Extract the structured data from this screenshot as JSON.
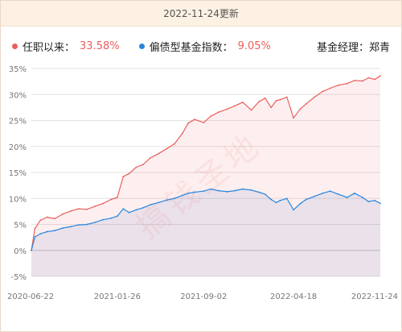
{
  "header": {
    "updated": "2022-11-24更新"
  },
  "legend": {
    "series1": {
      "label": "任职以来：",
      "value": "33.58%",
      "color": "#e8605e"
    },
    "series2": {
      "label": "偏债型基金指数：",
      "value": "9.05%",
      "color": "#2a86de"
    },
    "manager": "基金经理：郑青"
  },
  "watermark": "搞钱圣地",
  "chart_data": {
    "type": "area",
    "title": "",
    "xlabel": "",
    "ylabel": "",
    "ylim": [
      -5,
      35
    ],
    "y_ticks": [
      35,
      30,
      25,
      20,
      15,
      10,
      5,
      0,
      -5
    ],
    "y_tick_labels": [
      "35%",
      "30%",
      "25%",
      "20%",
      "15%",
      "10%",
      "5%",
      "0%",
      "-5%"
    ],
    "x_tick_labels": [
      "2020-06-22",
      "2021-01-26",
      "2021-09-02",
      "2022-04-18",
      "2022-11-24"
    ],
    "x": [
      "2020-06-22",
      "2020-07-01",
      "2020-07-15",
      "2020-08-01",
      "2020-08-20",
      "2020-09-10",
      "2020-10-01",
      "2020-10-20",
      "2020-11-10",
      "2020-12-01",
      "2020-12-20",
      "2021-01-10",
      "2021-01-26",
      "2021-02-10",
      "2021-02-25",
      "2021-03-15",
      "2021-04-01",
      "2021-04-20",
      "2021-05-10",
      "2021-06-01",
      "2021-06-20",
      "2021-07-10",
      "2021-07-25",
      "2021-08-10",
      "2021-09-02",
      "2021-09-20",
      "2021-10-10",
      "2021-11-01",
      "2021-11-20",
      "2021-12-10",
      "2022-01-01",
      "2022-01-20",
      "2022-02-05",
      "2022-02-20",
      "2022-03-05",
      "2022-03-15",
      "2022-04-01",
      "2022-04-18",
      "2022-05-05",
      "2022-05-20",
      "2022-06-10",
      "2022-07-01",
      "2022-07-20",
      "2022-08-10",
      "2022-09-01",
      "2022-09-20",
      "2022-10-10",
      "2022-10-25",
      "2022-11-10",
      "2022-11-24"
    ],
    "series": [
      {
        "name": "任职以来",
        "color": "#e8605e",
        "values": [
          0,
          4.2,
          5.8,
          6.4,
          6.1,
          7.0,
          7.6,
          8.0,
          7.9,
          8.5,
          9.0,
          9.8,
          10.2,
          14.2,
          14.8,
          16.0,
          16.5,
          17.8,
          18.6,
          19.6,
          20.5,
          22.5,
          24.5,
          25.2,
          24.6,
          25.8,
          26.6,
          27.2,
          27.8,
          28.5,
          27.0,
          28.6,
          29.3,
          27.5,
          28.8,
          29.0,
          29.5,
          25.5,
          27.2,
          28.2,
          29.5,
          30.6,
          31.2,
          31.8,
          32.1,
          32.7,
          32.6,
          33.2,
          32.9,
          33.58
        ]
      },
      {
        "name": "偏债型基金指数",
        "color": "#2a86de",
        "values": [
          0,
          2.6,
          3.2,
          3.6,
          3.8,
          4.3,
          4.6,
          4.9,
          5.0,
          5.4,
          5.9,
          6.2,
          6.6,
          8.0,
          7.3,
          7.8,
          8.2,
          8.8,
          9.2,
          9.7,
          10.0,
          10.6,
          11.0,
          11.2,
          11.4,
          11.8,
          11.5,
          11.3,
          11.5,
          11.8,
          11.6,
          11.2,
          10.8,
          9.8,
          9.2,
          9.6,
          10.0,
          7.8,
          9.0,
          9.8,
          10.4,
          11.0,
          11.4,
          10.8,
          10.2,
          11.0,
          10.2,
          9.4,
          9.6,
          9.05
        ]
      }
    ],
    "grid": true,
    "legend_position": "top"
  }
}
